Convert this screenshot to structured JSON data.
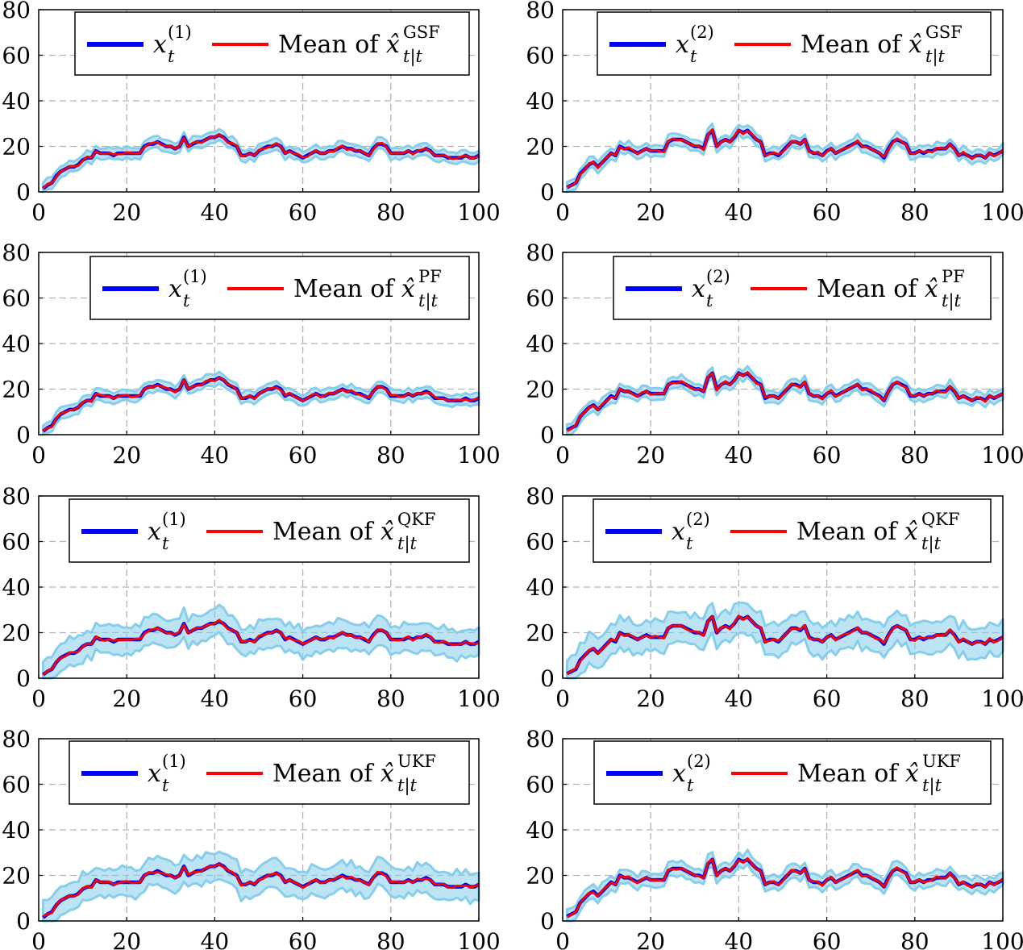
{
  "figure": {
    "panels_count": 8,
    "layout": "4 rows x 2 columns"
  },
  "colors": {
    "truth": "#0000ff",
    "estimate": "#ff0000",
    "band": "#87ceeb",
    "grid": "#b3b3b3",
    "frame": "#000000"
  },
  "chart_data": [
    {
      "type": "line",
      "filter": "GSF",
      "state_index": "1",
      "truth_label": "x_t^(1)",
      "estimate_label_prefix": "Mean of",
      "estimate_symbol": "x̂",
      "estimate_superscript": "GSF",
      "estimate_subscript": "t|t",
      "xlim": [
        0,
        100
      ],
      "ylim": [
        0,
        80
      ],
      "xticks": [
        0,
        20,
        40,
        60,
        80,
        100
      ],
      "yticks": [
        0,
        20,
        40,
        60,
        80
      ],
      "grid": true,
      "legend": "top-right",
      "band_halfwidth": 2,
      "band_description": "light-blue band around the estimate"
    },
    {
      "type": "line",
      "filter": "GSF",
      "state_index": "2",
      "truth_label": "x_t^(2)",
      "estimate_label_prefix": "Mean of",
      "estimate_symbol": "x̂",
      "estimate_superscript": "GSF",
      "estimate_subscript": "t|t",
      "xlim": [
        0,
        100
      ],
      "ylim": [
        0,
        80
      ],
      "xticks": [
        0,
        20,
        40,
        60,
        80,
        100
      ],
      "yticks": [
        0,
        20,
        40,
        60,
        80
      ],
      "grid": true,
      "legend": "top-right",
      "band_halfwidth": 2
    },
    {
      "type": "line",
      "filter": "PF",
      "state_index": "1",
      "truth_label": "x_t^(1)",
      "estimate_label_prefix": "Mean of",
      "estimate_symbol": "x̂",
      "estimate_superscript": "PF",
      "estimate_subscript": "t|t",
      "xlim": [
        0,
        100
      ],
      "ylim": [
        0,
        80
      ],
      "xticks": [
        0,
        20,
        40,
        60,
        80,
        100
      ],
      "yticks": [
        0,
        20,
        40,
        60,
        80
      ],
      "grid": true,
      "legend": "top-right",
      "band_halfwidth": 2
    },
    {
      "type": "line",
      "filter": "PF",
      "state_index": "2",
      "truth_label": "x_t^(2)",
      "estimate_label_prefix": "Mean of",
      "estimate_symbol": "x̂",
      "estimate_superscript": "PF",
      "estimate_subscript": "t|t",
      "xlim": [
        0,
        100
      ],
      "ylim": [
        0,
        80
      ],
      "xticks": [
        0,
        20,
        40,
        60,
        80,
        100
      ],
      "yticks": [
        0,
        20,
        40,
        60,
        80
      ],
      "grid": true,
      "legend": "top-right",
      "band_halfwidth": 2
    },
    {
      "type": "line",
      "filter": "QKF",
      "state_index": "1",
      "truth_label": "x_t^(1)",
      "estimate_label_prefix": "Mean of",
      "estimate_symbol": "x̂",
      "estimate_superscript": "QKF",
      "estimate_subscript": "t|t",
      "xlim": [
        0,
        100
      ],
      "ylim": [
        0,
        80
      ],
      "xticks": [
        0,
        20,
        40,
        60,
        80,
        100
      ],
      "yticks": [
        0,
        20,
        40,
        60,
        80
      ],
      "grid": true,
      "legend": "top-right",
      "band_halfwidth": 5
    },
    {
      "type": "line",
      "filter": "QKF",
      "state_index": "2",
      "truth_label": "x_t^(2)",
      "estimate_label_prefix": "Mean of",
      "estimate_symbol": "x̂",
      "estimate_superscript": "QKF",
      "estimate_subscript": "t|t",
      "xlim": [
        0,
        100
      ],
      "ylim": [
        0,
        80
      ],
      "xticks": [
        0,
        20,
        40,
        60,
        80,
        100
      ],
      "yticks": [
        0,
        20,
        40,
        60,
        80
      ],
      "grid": true,
      "legend": "top-right",
      "band_halfwidth": 5.5
    },
    {
      "type": "line",
      "filter": "UKF",
      "state_index": "1",
      "truth_label": "x_t^(1)",
      "estimate_label_prefix": "Mean of",
      "estimate_symbol": "x̂",
      "estimate_superscript": "UKF",
      "estimate_subscript": "t|t",
      "xlim": [
        0,
        100
      ],
      "ylim": [
        0,
        80
      ],
      "xticks": [
        0,
        20,
        40,
        60,
        80,
        100
      ],
      "yticks": [
        0,
        20,
        40,
        60,
        80
      ],
      "grid": true,
      "legend": "top-right",
      "band_halfwidth": 5
    },
    {
      "type": "line",
      "filter": "UKF",
      "state_index": "2",
      "truth_label": "x_t^(2)",
      "estimate_label_prefix": "Mean of",
      "estimate_symbol": "x̂",
      "estimate_superscript": "UKF",
      "estimate_subscript": "t|t",
      "xlim": [
        0,
        100
      ],
      "ylim": [
        0,
        80
      ],
      "xticks": [
        0,
        20,
        40,
        60,
        80,
        100
      ],
      "yticks": [
        0,
        20,
        40,
        60,
        80
      ],
      "grid": true,
      "legend": "top-right",
      "band_halfwidth": 2.5
    }
  ],
  "series": {
    "x": [
      1,
      2,
      3,
      4,
      5,
      6,
      7,
      8,
      9,
      10,
      11,
      12,
      13,
      14,
      15,
      16,
      17,
      18,
      19,
      20,
      21,
      22,
      23,
      24,
      25,
      26,
      27,
      28,
      29,
      30,
      31,
      32,
      33,
      34,
      35,
      36,
      37,
      38,
      39,
      40,
      41,
      42,
      43,
      44,
      45,
      46,
      47,
      48,
      49,
      50,
      51,
      52,
      53,
      54,
      55,
      56,
      57,
      58,
      59,
      60,
      61,
      62,
      63,
      64,
      65,
      66,
      67,
      68,
      69,
      70,
      71,
      72,
      73,
      74,
      75,
      76,
      77,
      78,
      79,
      80,
      81,
      82,
      83,
      84,
      85,
      86,
      87,
      88,
      89,
      90,
      91,
      92,
      93,
      94,
      95,
      96,
      97,
      98,
      99,
      100
    ],
    "state1": [
      1.5,
      3,
      4,
      7,
      9,
      10,
      11,
      11,
      12,
      14,
      15,
      15,
      18,
      17,
      17,
      17,
      16,
      17,
      17,
      17,
      17,
      17,
      17,
      20,
      21,
      21,
      22,
      21,
      20,
      20,
      19,
      20,
      24,
      20,
      21,
      22,
      22,
      23,
      24,
      24,
      25,
      24,
      22,
      21,
      20,
      16,
      16,
      17,
      16,
      18,
      19,
      20,
      20,
      21,
      20,
      17,
      18,
      17,
      16,
      15,
      16,
      17,
      18,
      17,
      17,
      18,
      18,
      19,
      20,
      19,
      19,
      18,
      18,
      17,
      16,
      19,
      21,
      21,
      20,
      17,
      17,
      17,
      17,
      18,
      17,
      18,
      18,
      19,
      18,
      16,
      16,
      16,
      15,
      15,
      15,
      15,
      16,
      15,
      15,
      16
    ],
    "state2": [
      2,
      3,
      4,
      8,
      10,
      12,
      13,
      11,
      13,
      15,
      17,
      16,
      20,
      19,
      19,
      18,
      17,
      18,
      19,
      18,
      18,
      18,
      18,
      22,
      23,
      23,
      23,
      22,
      21,
      20,
      20,
      19,
      25,
      27,
      20,
      22,
      23,
      22,
      24,
      27,
      26,
      27,
      25,
      23,
      22,
      16,
      17,
      17,
      16,
      18,
      20,
      22,
      22,
      21,
      23,
      18,
      17,
      17,
      16,
      18,
      19,
      17,
      18,
      19,
      20,
      21,
      22,
      20,
      20,
      19,
      18,
      17,
      15,
      19,
      22,
      23,
      22,
      21,
      17,
      17,
      18,
      17,
      18,
      18,
      19,
      19,
      19,
      21,
      19,
      16,
      17,
      16,
      15,
      16,
      16,
      15,
      17,
      16,
      17,
      18
    ]
  }
}
